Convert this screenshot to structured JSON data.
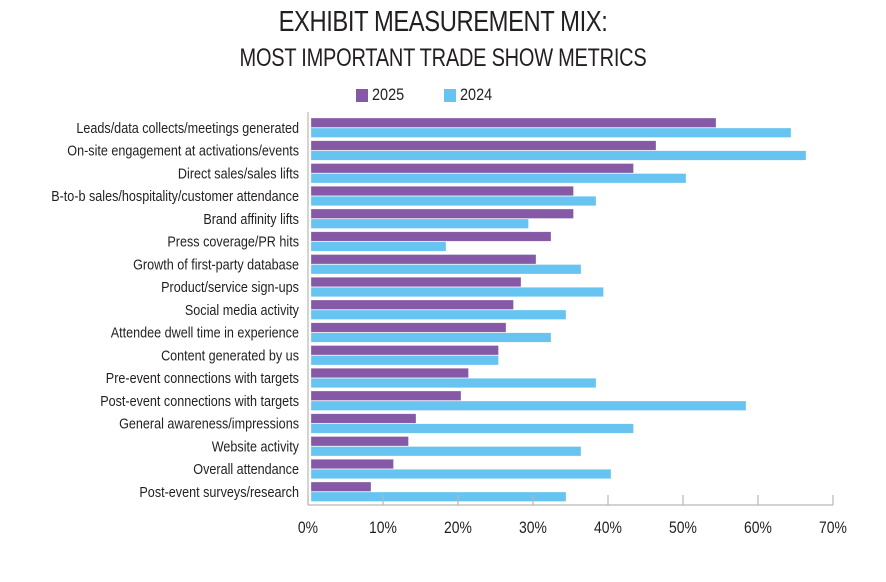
{
  "chart_data": {
    "type": "bar",
    "orientation": "horizontal",
    "title": "EXHIBIT MEASUREMENT MIX:",
    "subtitle": "MOST IMPORTANT TRADE SHOW METRICS",
    "xlabel": "",
    "ylabel": "",
    "xlim": [
      0,
      70
    ],
    "xticks": [
      0,
      10,
      20,
      30,
      40,
      50,
      60,
      70
    ],
    "xtick_labels": [
      "0%",
      "10%",
      "20%",
      "30%",
      "40%",
      "50%",
      "60%",
      "70%"
    ],
    "grid": false,
    "legend_position": "top-center",
    "categories": [
      "Leads/data collects/meetings generated",
      "On-site engagement at activations/events",
      "Direct sales/sales lifts",
      "B-to-b sales/hospitality/customer attendance",
      "Brand affinity lifts",
      "Press coverage/PR hits",
      "Growth of first-party database",
      "Product/service sign-ups",
      "Social media activity",
      "Attendee dwell time in experience",
      "Content generated by us",
      "Pre-event connections with targets",
      "Post-event connections with targets",
      "General awareness/impressions",
      "Website activity",
      "Overall attendance",
      "Post-event surveys/research"
    ],
    "series": [
      {
        "name": "2025",
        "color": "#8559a5",
        "values": [
          54,
          46,
          43,
          35,
          35,
          32,
          30,
          28,
          27,
          26,
          25,
          21,
          20,
          14,
          13,
          11,
          8
        ]
      },
      {
        "name": "2024",
        "color": "#67c3ef",
        "values": [
          64,
          66,
          50,
          38,
          29,
          18,
          36,
          39,
          34,
          32,
          25,
          38,
          58,
          43,
          36,
          40,
          34
        ]
      }
    ]
  }
}
